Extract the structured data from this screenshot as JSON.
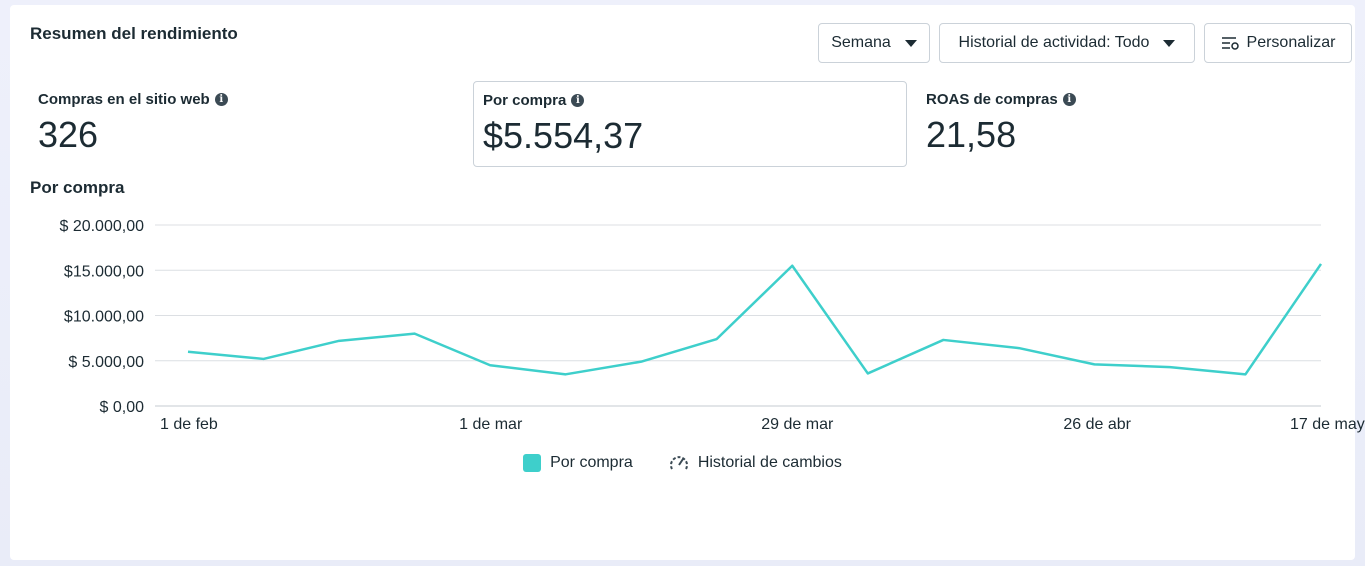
{
  "header": {
    "title": "Resumen del rendimiento",
    "week_button": "Semana",
    "history_button": "Historial de actividad: Todo",
    "customize_button": "Personalizar"
  },
  "metrics": [
    {
      "label": "Compras en el sitio web",
      "value": "326",
      "selected": false
    },
    {
      "label": "Por compra",
      "value": "$5.554,37",
      "selected": true
    },
    {
      "label": "ROAS de compras",
      "value": "21,58",
      "selected": false
    }
  ],
  "chart_title": "Por compra",
  "legend": {
    "series_label": "Por compra",
    "history_label": "Historial de cambios"
  },
  "colors": {
    "series": "#3ecfcb",
    "grid": "#dcdfe3",
    "text": "#1c2b33"
  },
  "chart_data": {
    "type": "line",
    "title": "Por compra",
    "xlabel": "",
    "ylabel": "",
    "ylim": [
      0,
      20000
    ],
    "y_ticks": [
      0,
      5000,
      10000,
      15000,
      20000
    ],
    "y_tick_labels": [
      "$ 0,00",
      "$ 5.000,00",
      "$10.000,00",
      "$15.000,00",
      "$ 20.000,00"
    ],
    "x_tick_labels": [
      {
        "index": 0,
        "label": "1 de feb"
      },
      {
        "index": 4,
        "label": "1 de mar"
      },
      {
        "index": 8,
        "label": "29 de mar"
      },
      {
        "index": 12,
        "label": "26 de abr"
      },
      {
        "index": 15,
        "label": "17 de may"
      }
    ],
    "grid": true,
    "legend_position": "bottom-center",
    "series": [
      {
        "name": "Por compra",
        "values": [
          6000,
          5200,
          7200,
          8000,
          4500,
          3500,
          4900,
          7400,
          15500,
          3600,
          7300,
          6400,
          4600,
          4300,
          3500,
          15700
        ]
      }
    ]
  }
}
